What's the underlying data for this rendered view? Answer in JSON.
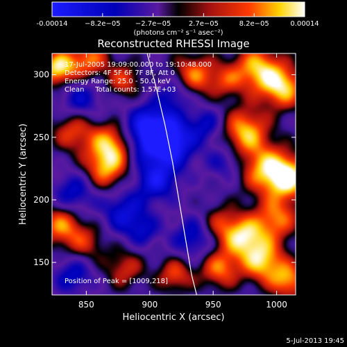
{
  "chart_data": {
    "type": "heatmap",
    "title": "Reconstructed RHESSI Image",
    "xlabel": "Heliocentric X (arcsec)",
    "ylabel": "Heliocentric Y (arcsec)",
    "xlim": [
      823,
      1015
    ],
    "ylim": [
      124,
      317
    ],
    "x_ticks": [
      "850",
      "900",
      "950",
      "1000"
    ],
    "y_ticks": [
      "150",
      "200",
      "250",
      "300"
    ],
    "colorbar": {
      "range": [
        -0.00014,
        0.00014
      ],
      "ticks": [
        "-0.00014",
        "−8.2e−05",
        "−2.7e−05",
        "2.7e−05",
        "8.2e−05",
        "0.00014"
      ],
      "unit_label": "(photons cm⁻² s⁻¹ asec⁻²)"
    },
    "annotations": [
      "17-Jul-2005 19:09:00.000 to 19:10:48.000",
      "Detectors: 4F 5F 6F 7F 8F, Att 0",
      "Energy Range: 25.0 - 50.0 keV",
      "Clean     Total counts: 1.57E+03"
    ],
    "peak_label": "Position of Peak = [1009,218]",
    "peak": [
      1009,
      218
    ],
    "limb_curve": [
      [
        898,
        317
      ],
      [
        905,
        290
      ],
      [
        912,
        260
      ],
      [
        918,
        230
      ],
      [
        923,
        200
      ],
      [
        928,
        170
      ],
      [
        933,
        140
      ],
      [
        937,
        124
      ]
    ],
    "blobs": [
      {
        "x": 828,
        "y": 305,
        "v": 1.0,
        "r": 10
      },
      {
        "x": 852,
        "y": 312,
        "v": 0.7,
        "r": 11
      },
      {
        "x": 880,
        "y": 295,
        "v": 0.55,
        "r": 10
      },
      {
        "x": 845,
        "y": 280,
        "v": -0.5,
        "r": 12
      },
      {
        "x": 900,
        "y": 255,
        "v": -0.95,
        "r": 14
      },
      {
        "x": 915,
        "y": 245,
        "v": -0.9,
        "r": 14
      },
      {
        "x": 935,
        "y": 300,
        "v": 0.7,
        "r": 12
      },
      {
        "x": 960,
        "y": 295,
        "v": 0.45,
        "r": 10
      },
      {
        "x": 985,
        "y": 305,
        "v": 0.85,
        "r": 13
      },
      {
        "x": 1005,
        "y": 290,
        "v": 0.9,
        "r": 12
      },
      {
        "x": 975,
        "y": 255,
        "v": 0.85,
        "r": 13
      },
      {
        "x": 990,
        "y": 225,
        "v": 0.75,
        "r": 14
      },
      {
        "x": 1009,
        "y": 218,
        "v": 1.0,
        "r": 12
      },
      {
        "x": 960,
        "y": 230,
        "v": -0.4,
        "r": 10
      },
      {
        "x": 840,
        "y": 255,
        "v": 0.6,
        "r": 12
      },
      {
        "x": 870,
        "y": 245,
        "v": 0.8,
        "r": 12
      },
      {
        "x": 865,
        "y": 225,
        "v": 0.75,
        "r": 12
      },
      {
        "x": 840,
        "y": 205,
        "v": -0.55,
        "r": 12
      },
      {
        "x": 830,
        "y": 180,
        "v": 0.75,
        "r": 12
      },
      {
        "x": 850,
        "y": 165,
        "v": 0.45,
        "r": 11
      },
      {
        "x": 880,
        "y": 190,
        "v": -0.6,
        "r": 12
      },
      {
        "x": 905,
        "y": 215,
        "v": -0.7,
        "r": 11
      },
      {
        "x": 935,
        "y": 170,
        "v": -0.55,
        "r": 12
      },
      {
        "x": 955,
        "y": 180,
        "v": 0.5,
        "r": 11
      },
      {
        "x": 975,
        "y": 170,
        "v": 0.9,
        "r": 12
      },
      {
        "x": 1000,
        "y": 185,
        "v": 0.7,
        "r": 12
      },
      {
        "x": 990,
        "y": 150,
        "v": 0.85,
        "r": 12
      },
      {
        "x": 955,
        "y": 145,
        "v": 0.7,
        "r": 11
      },
      {
        "x": 920,
        "y": 140,
        "v": 0.6,
        "r": 10
      },
      {
        "x": 880,
        "y": 145,
        "v": 0.5,
        "r": 11
      },
      {
        "x": 840,
        "y": 140,
        "v": -0.5,
        "r": 11
      },
      {
        "x": 1010,
        "y": 135,
        "v": 0.75,
        "r": 10
      },
      {
        "x": 895,
        "y": 175,
        "v": -0.4,
        "r": 9
      },
      {
        "x": 945,
        "y": 260,
        "v": -0.45,
        "r": 10
      },
      {
        "x": 920,
        "y": 285,
        "v": -0.45,
        "r": 9
      }
    ]
  },
  "footer_timestamp": "5-Jul-2013 19:45"
}
